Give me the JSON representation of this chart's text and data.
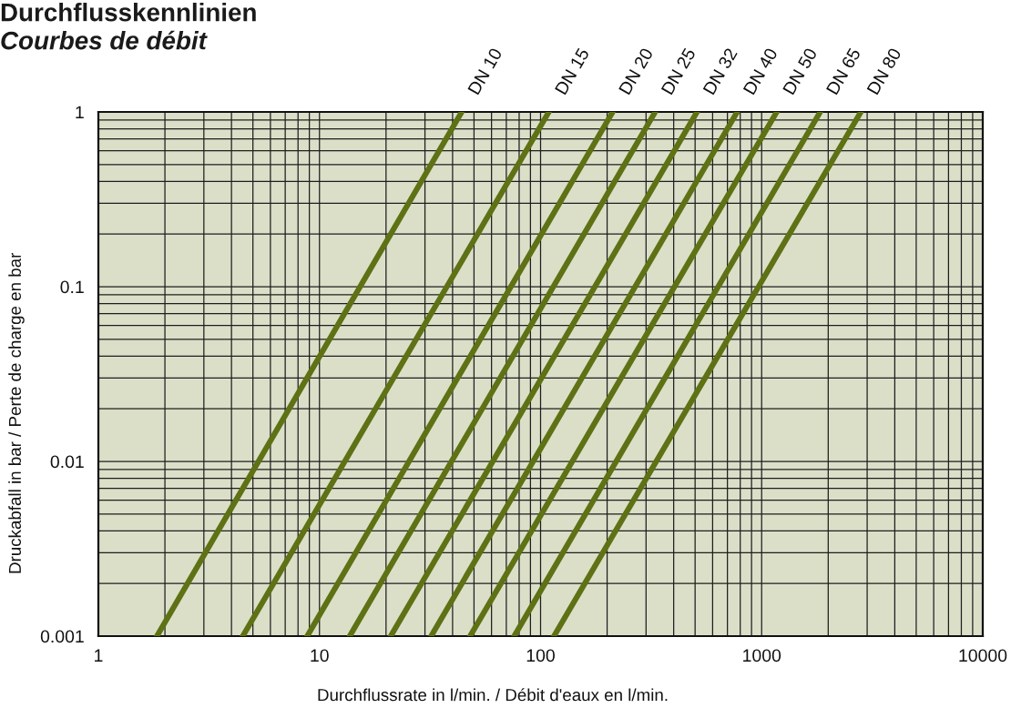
{
  "chart_data": {
    "type": "line",
    "title": "Durchflusskennlinien",
    "subtitle": "Courbes de débit",
    "xlabel": "Durchflussrate in l/min. / Débit d'eaux en l/min.",
    "ylabel": "Druckabfall in bar / Perte de charge en bar",
    "log": "xy",
    "xlim": [
      1,
      10000
    ],
    "ylim": [
      0.001,
      1
    ],
    "xticks": [
      1,
      10,
      100,
      1000,
      10000
    ],
    "yticks": [
      0.001,
      0.01,
      0.1,
      1
    ],
    "grid": true,
    "series": [
      {
        "name": "DN 10",
        "color": "#5e7114",
        "x": [
          1.84,
          44
        ],
        "values": [
          0.001,
          1
        ]
      },
      {
        "name": "DN 15",
        "color": "#5e7114",
        "x": [
          4.5,
          109
        ],
        "values": [
          0.001,
          1
        ]
      },
      {
        "name": "DN 20",
        "color": "#5e7114",
        "x": [
          8.8,
          212
        ],
        "values": [
          0.001,
          1
        ]
      },
      {
        "name": "DN 25",
        "color": "#5e7114",
        "x": [
          13.7,
          330
        ],
        "values": [
          0.001,
          1
        ]
      },
      {
        "name": "DN 32",
        "color": "#5e7114",
        "x": [
          21,
          510
        ],
        "values": [
          0.001,
          1
        ]
      },
      {
        "name": "DN 40",
        "color": "#5e7114",
        "x": [
          32,
          775
        ],
        "values": [
          0.001,
          1
        ]
      },
      {
        "name": "DN 50",
        "color": "#5e7114",
        "x": [
          48,
          1170
        ],
        "values": [
          0.001,
          1
        ]
      },
      {
        "name": "DN 65",
        "color": "#5e7114",
        "x": [
          76,
          1840
        ],
        "values": [
          0.001,
          1
        ]
      },
      {
        "name": "DN 80",
        "color": "#5e7114",
        "x": [
          115,
          2810
        ],
        "values": [
          0.001,
          1
        ]
      }
    ]
  }
}
